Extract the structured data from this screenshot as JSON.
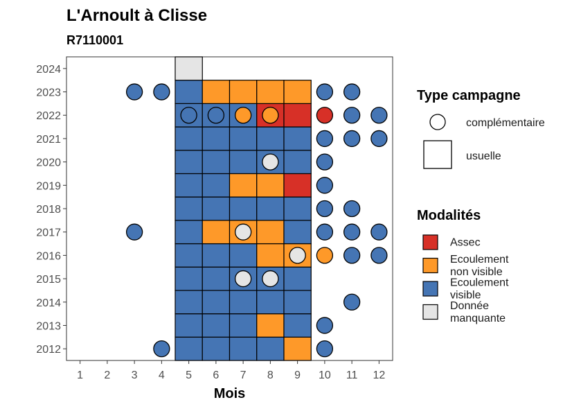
{
  "chart_data": {
    "type": "heatmap",
    "title": "L'Arnoult à Clisse",
    "subtitle": "R7110001",
    "xlabel": "Mois",
    "ylabel": "",
    "x_ticks": [
      "1",
      "2",
      "3",
      "4",
      "5",
      "6",
      "7",
      "8",
      "9",
      "10",
      "11",
      "12"
    ],
    "y_ticks": [
      "2012",
      "2013",
      "2014",
      "2015",
      "2016",
      "2017",
      "2018",
      "2019",
      "2020",
      "2021",
      "2022",
      "2023",
      "2024"
    ],
    "xlim": [
      0.5,
      12.5
    ],
    "ylim": [
      2011.5,
      2024.5
    ],
    "grid": false,
    "legend_placement": "right",
    "legends": {
      "shape_title": "Type campagne",
      "shape_items": [
        {
          "key": "complementaire",
          "label": "complémentaire",
          "shape": "circle"
        },
        {
          "key": "usuelle",
          "label": "usuelle",
          "shape": "square"
        }
      ],
      "fill_title": "Modalités",
      "fill_items": [
        {
          "key": "A",
          "label_lines": [
            "Assec"
          ],
          "color": "#d73027"
        },
        {
          "key": "E",
          "label_lines": [
            "Ecoulement",
            "non visible"
          ],
          "color": "#fe9929"
        },
        {
          "key": "V",
          "label_lines": [
            "Ecoulement",
            "visible"
          ],
          "color": "#4575b4"
        },
        {
          "key": "M",
          "label_lines": [
            "Donnée",
            "manquante"
          ],
          "color": "#e5e5e5"
        }
      ]
    },
    "usuelle": [
      {
        "year": 2012,
        "months": [
          5,
          6,
          7,
          8,
          9
        ],
        "values": [
          "V",
          "V",
          "V",
          "V",
          "E"
        ]
      },
      {
        "year": 2013,
        "months": [
          5,
          6,
          7,
          8,
          9
        ],
        "values": [
          "V",
          "V",
          "V",
          "E",
          "V"
        ]
      },
      {
        "year": 2014,
        "months": [
          5,
          6,
          7,
          8,
          9
        ],
        "values": [
          "V",
          "V",
          "V",
          "V",
          "V"
        ]
      },
      {
        "year": 2015,
        "months": [
          5,
          6,
          7,
          8,
          9
        ],
        "values": [
          "V",
          "V",
          "V",
          "V",
          "V"
        ]
      },
      {
        "year": 2016,
        "months": [
          5,
          6,
          7,
          8,
          9
        ],
        "values": [
          "V",
          "V",
          "V",
          "E",
          "E"
        ]
      },
      {
        "year": 2017,
        "months": [
          5,
          6,
          7,
          8,
          9
        ],
        "values": [
          "V",
          "E",
          "E",
          "E",
          "V"
        ]
      },
      {
        "year": 2018,
        "months": [
          5,
          6,
          7,
          8,
          9
        ],
        "values": [
          "V",
          "V",
          "V",
          "V",
          "V"
        ]
      },
      {
        "year": 2019,
        "months": [
          5,
          6,
          7,
          8,
          9
        ],
        "values": [
          "V",
          "V",
          "E",
          "E",
          "A"
        ]
      },
      {
        "year": 2020,
        "months": [
          5,
          6,
          7,
          8,
          9
        ],
        "values": [
          "V",
          "V",
          "V",
          "V",
          "V"
        ]
      },
      {
        "year": 2021,
        "months": [
          5,
          6,
          7,
          8,
          9
        ],
        "values": [
          "V",
          "V",
          "V",
          "V",
          "V"
        ]
      },
      {
        "year": 2022,
        "months": [
          5,
          6,
          7,
          8,
          9
        ],
        "values": [
          "V",
          "V",
          "V",
          "A",
          "A"
        ]
      },
      {
        "year": 2023,
        "months": [
          5,
          6,
          7,
          8,
          9
        ],
        "values": [
          "V",
          "E",
          "E",
          "E",
          "E"
        ]
      },
      {
        "year": 2024,
        "months": [
          5
        ],
        "values": [
          "M"
        ]
      }
    ],
    "complementaire": [
      {
        "year": 2012,
        "month": 4,
        "value": "V"
      },
      {
        "year": 2012,
        "month": 10,
        "value": "V"
      },
      {
        "year": 2013,
        "month": 10,
        "value": "V"
      },
      {
        "year": 2014,
        "month": 11,
        "value": "V"
      },
      {
        "year": 2015,
        "month": 7,
        "value": "M"
      },
      {
        "year": 2015,
        "month": 8,
        "value": "M"
      },
      {
        "year": 2016,
        "month": 9,
        "value": "M"
      },
      {
        "year": 2016,
        "month": 10,
        "value": "E"
      },
      {
        "year": 2016,
        "month": 11,
        "value": "V"
      },
      {
        "year": 2016,
        "month": 12,
        "value": "V"
      },
      {
        "year": 2017,
        "month": 3,
        "value": "V"
      },
      {
        "year": 2017,
        "month": 7,
        "value": "M"
      },
      {
        "year": 2017,
        "month": 10,
        "value": "V"
      },
      {
        "year": 2017,
        "month": 11,
        "value": "V"
      },
      {
        "year": 2017,
        "month": 12,
        "value": "V"
      },
      {
        "year": 2018,
        "month": 10,
        "value": "V"
      },
      {
        "year": 2018,
        "month": 11,
        "value": "V"
      },
      {
        "year": 2019,
        "month": 10,
        "value": "V"
      },
      {
        "year": 2020,
        "month": 8,
        "value": "M"
      },
      {
        "year": 2020,
        "month": 10,
        "value": "V"
      },
      {
        "year": 2021,
        "month": 10,
        "value": "V"
      },
      {
        "year": 2021,
        "month": 11,
        "value": "V"
      },
      {
        "year": 2021,
        "month": 12,
        "value": "V"
      },
      {
        "year": 2022,
        "month": 5,
        "value": "V"
      },
      {
        "year": 2022,
        "month": 6,
        "value": "V"
      },
      {
        "year": 2022,
        "month": 7,
        "value": "E"
      },
      {
        "year": 2022,
        "month": 8,
        "value": "E"
      },
      {
        "year": 2022,
        "month": 10,
        "value": "A"
      },
      {
        "year": 2022,
        "month": 11,
        "value": "V"
      },
      {
        "year": 2022,
        "month": 12,
        "value": "V"
      },
      {
        "year": 2023,
        "month": 3,
        "value": "V"
      },
      {
        "year": 2023,
        "month": 4,
        "value": "V"
      },
      {
        "year": 2023,
        "month": 10,
        "value": "V"
      },
      {
        "year": 2023,
        "month": 11,
        "value": "V"
      }
    ]
  }
}
